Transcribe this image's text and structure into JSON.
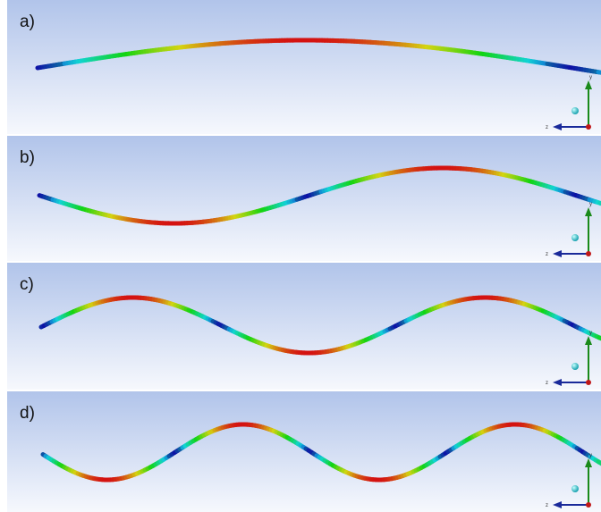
{
  "panels": [
    {
      "label": "a)",
      "y_axis": "y",
      "z_axis": "z"
    },
    {
      "label": "b)",
      "y_axis": "y",
      "z_axis": "z"
    },
    {
      "label": "c)",
      "y_axis": "y",
      "z_axis": "z"
    },
    {
      "label": "d)",
      "y_axis": "y",
      "z_axis": "z"
    }
  ]
}
